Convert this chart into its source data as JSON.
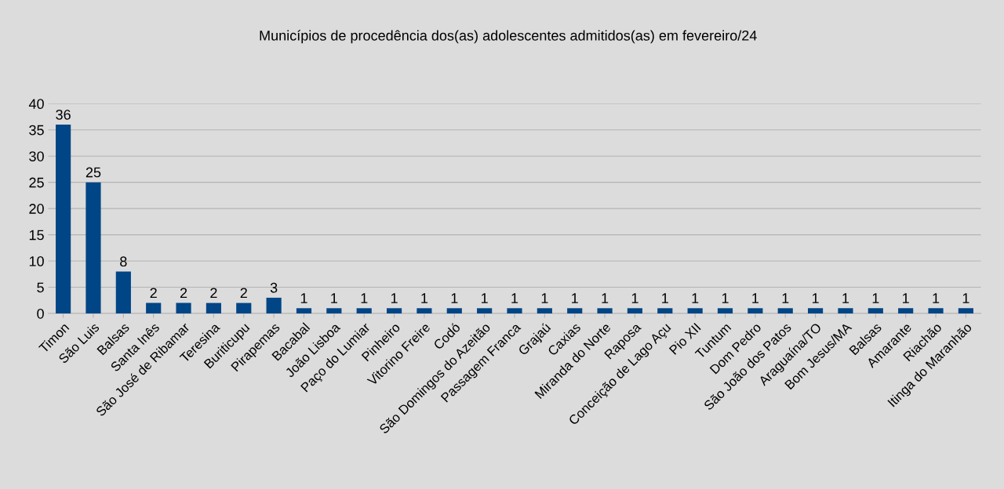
{
  "chart_data": {
    "type": "bar",
    "title": "Municípios de procedência dos(as) adolescentes admitidos(as) em fevereiro/24",
    "categories": [
      "Timon",
      "São Luis",
      "Balsas",
      "Santa Inês",
      "São José de Ribamar",
      "Teresina",
      "Buriticupu",
      "Pirapemas",
      "Bacabal",
      "João Lisboa",
      "Paço do Lumiar",
      "Pinheiro",
      "Vitorino Freire",
      "Codó",
      "São Domingos do Azeitão",
      "Passagem Franca",
      "Grajaú",
      "Caxias",
      "Miranda do Norte",
      "Raposa",
      "Conceição de Lago Açu",
      "Pio XII",
      "Tuntum",
      "Dom Pedro",
      "São João dos Patos",
      "Araguaína/TO",
      "Bom Jesus/MA",
      "Balsas",
      "Amarante",
      "Riachão",
      "Itinga do Maranhão"
    ],
    "values": [
      36,
      25,
      8,
      2,
      2,
      2,
      2,
      3,
      1,
      1,
      1,
      1,
      1,
      1,
      1,
      1,
      1,
      1,
      1,
      1,
      1,
      1,
      1,
      1,
      1,
      1,
      1,
      1,
      1,
      1,
      1
    ],
    "color": "#004586",
    "ylim": [
      0,
      40
    ],
    "yticks": [
      0,
      5,
      10,
      15,
      20,
      25,
      30,
      35,
      40
    ],
    "grid": "y",
    "data_labels": true,
    "legend": false
  }
}
